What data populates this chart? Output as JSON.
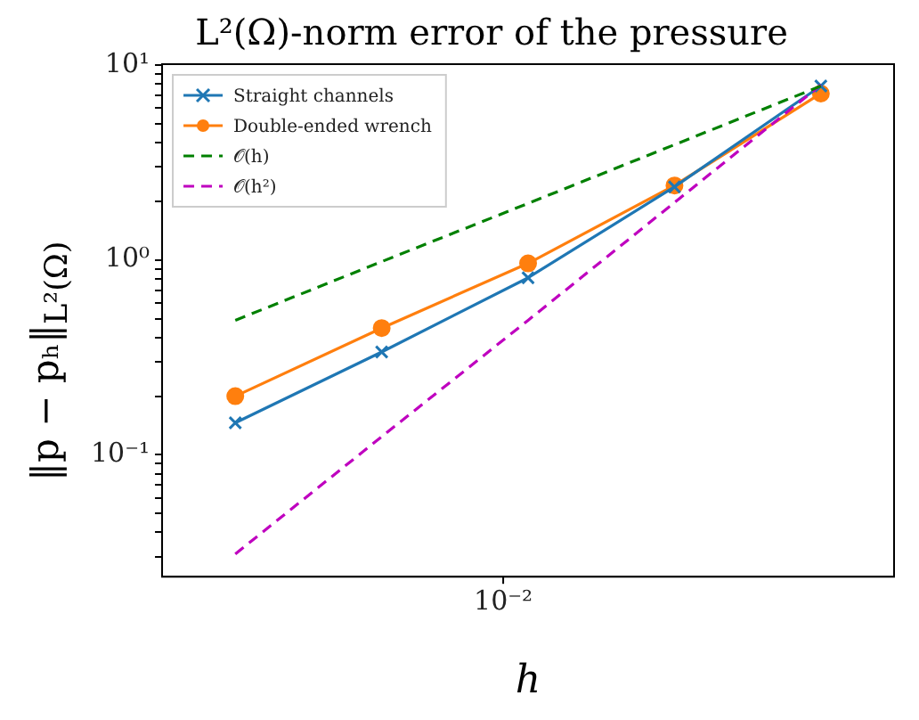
{
  "chart_data": {
    "type": "line",
    "title": "L²(Ω)-norm error of the pressure",
    "xlabel": "h",
    "ylabel": "‖p − pₕ‖$_{L²(Ω)}$",
    "log": "y",
    "grid": false,
    "legend": "top left",
    "categories": [
      null,
      null,
      null,
      null,
      null
    ],
    "annotations": [
      "10⁻²"
    ],
    "ylim": [
      0.0237,
      10.1
    ],
    "yticks": [
      {
        "value": 0.03,
        "label": null
      },
      {
        "value": 0.04,
        "label": null
      },
      {
        "value": 0.05,
        "label": null
      },
      {
        "value": 0.06,
        "label": null
      },
      {
        "value": 0.07,
        "label": null
      },
      {
        "value": 0.08,
        "label": null
      },
      {
        "value": 0.09,
        "label": null
      },
      {
        "value": 0.1,
        "label": "10⁻¹"
      },
      {
        "value": 0.2,
        "label": null
      },
      {
        "value": 0.3,
        "label": null
      },
      {
        "value": 0.4,
        "label": null
      },
      {
        "value": 0.5,
        "label": null
      },
      {
        "value": 0.6,
        "label": null
      },
      {
        "value": 0.7,
        "label": null
      },
      {
        "value": 0.8,
        "label": null
      },
      {
        "value": 0.9,
        "label": null
      },
      {
        "value": 1,
        "label": "10⁰"
      },
      {
        "value": 2,
        "label": null
      },
      {
        "value": 3,
        "label": null
      },
      {
        "value": 4,
        "label": null
      },
      {
        "value": 5,
        "label": null
      },
      {
        "value": 6,
        "label": null
      },
      {
        "value": 7,
        "label": null
      },
      {
        "value": 8,
        "label": null
      },
      {
        "value": 9,
        "label": null
      },
      {
        "value": 10,
        "label": "10¹"
      }
    ],
    "series": [
      {
        "name": "Straight channels",
        "color": "#1f77b4",
        "marker": "cross",
        "line_style": "solid",
        "values": [
          0.146,
          0.337,
          0.81,
          2.37,
          7.8
        ]
      },
      {
        "name": "Double-ended wrench",
        "color": "#ff7f0e",
        "marker": "circle",
        "line_style": "solid",
        "values": [
          0.2,
          0.447,
          0.96,
          2.41,
          7.14
        ]
      },
      {
        "name": "𝒪(h)",
        "color": "#008000",
        "marker": "none",
        "line_style": "dashed",
        "values": [
          0.49,
          0.98,
          1.95,
          3.9,
          7.8
        ]
      },
      {
        "name": "𝒪(h²)",
        "color": "#bf00bf",
        "marker": "none",
        "line_style": "dashed",
        "values": [
          0.031,
          0.124,
          0.49,
          1.97,
          7.9
        ]
      }
    ]
  }
}
